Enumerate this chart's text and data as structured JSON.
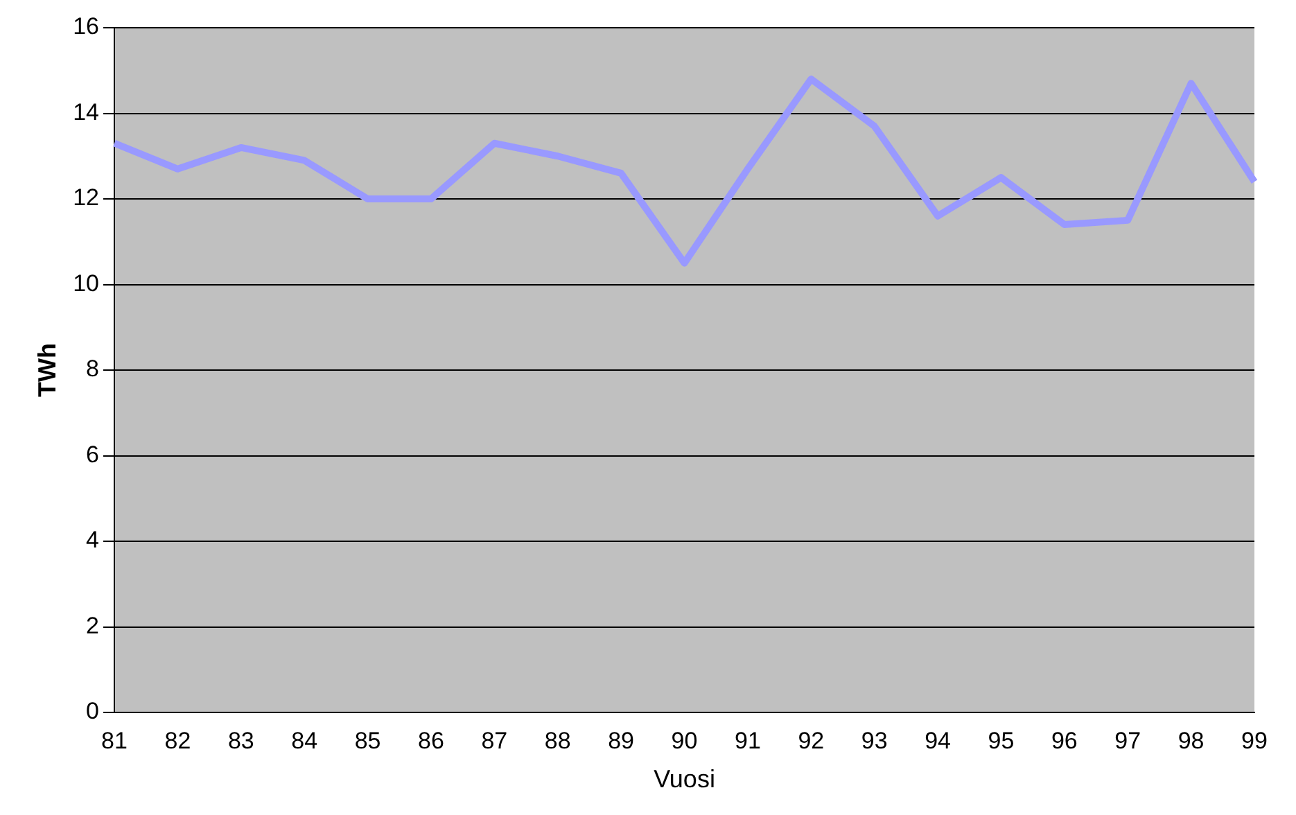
{
  "chart_data": {
    "type": "line",
    "xlabel": "Vuosi",
    "ylabel": "TWh",
    "categories": [
      "81",
      "82",
      "83",
      "84",
      "85",
      "86",
      "87",
      "88",
      "89",
      "90",
      "91",
      "92",
      "93",
      "94",
      "95",
      "96",
      "97",
      "98",
      "99"
    ],
    "series": [
      {
        "color": "#9999ff",
        "values": [
          13.3,
          12.7,
          13.2,
          12.9,
          12.0,
          12.0,
          13.3,
          13.0,
          12.6,
          10.5,
          12.7,
          14.8,
          13.7,
          11.6,
          12.5,
          11.4,
          11.5,
          14.7,
          12.4
        ]
      }
    ],
    "ylim": [
      0,
      16
    ],
    "yticks": [
      0,
      2,
      4,
      6,
      8,
      10,
      12,
      14,
      16
    ],
    "grid": "y",
    "legend": false,
    "marker": "none",
    "line_style": "solid"
  }
}
